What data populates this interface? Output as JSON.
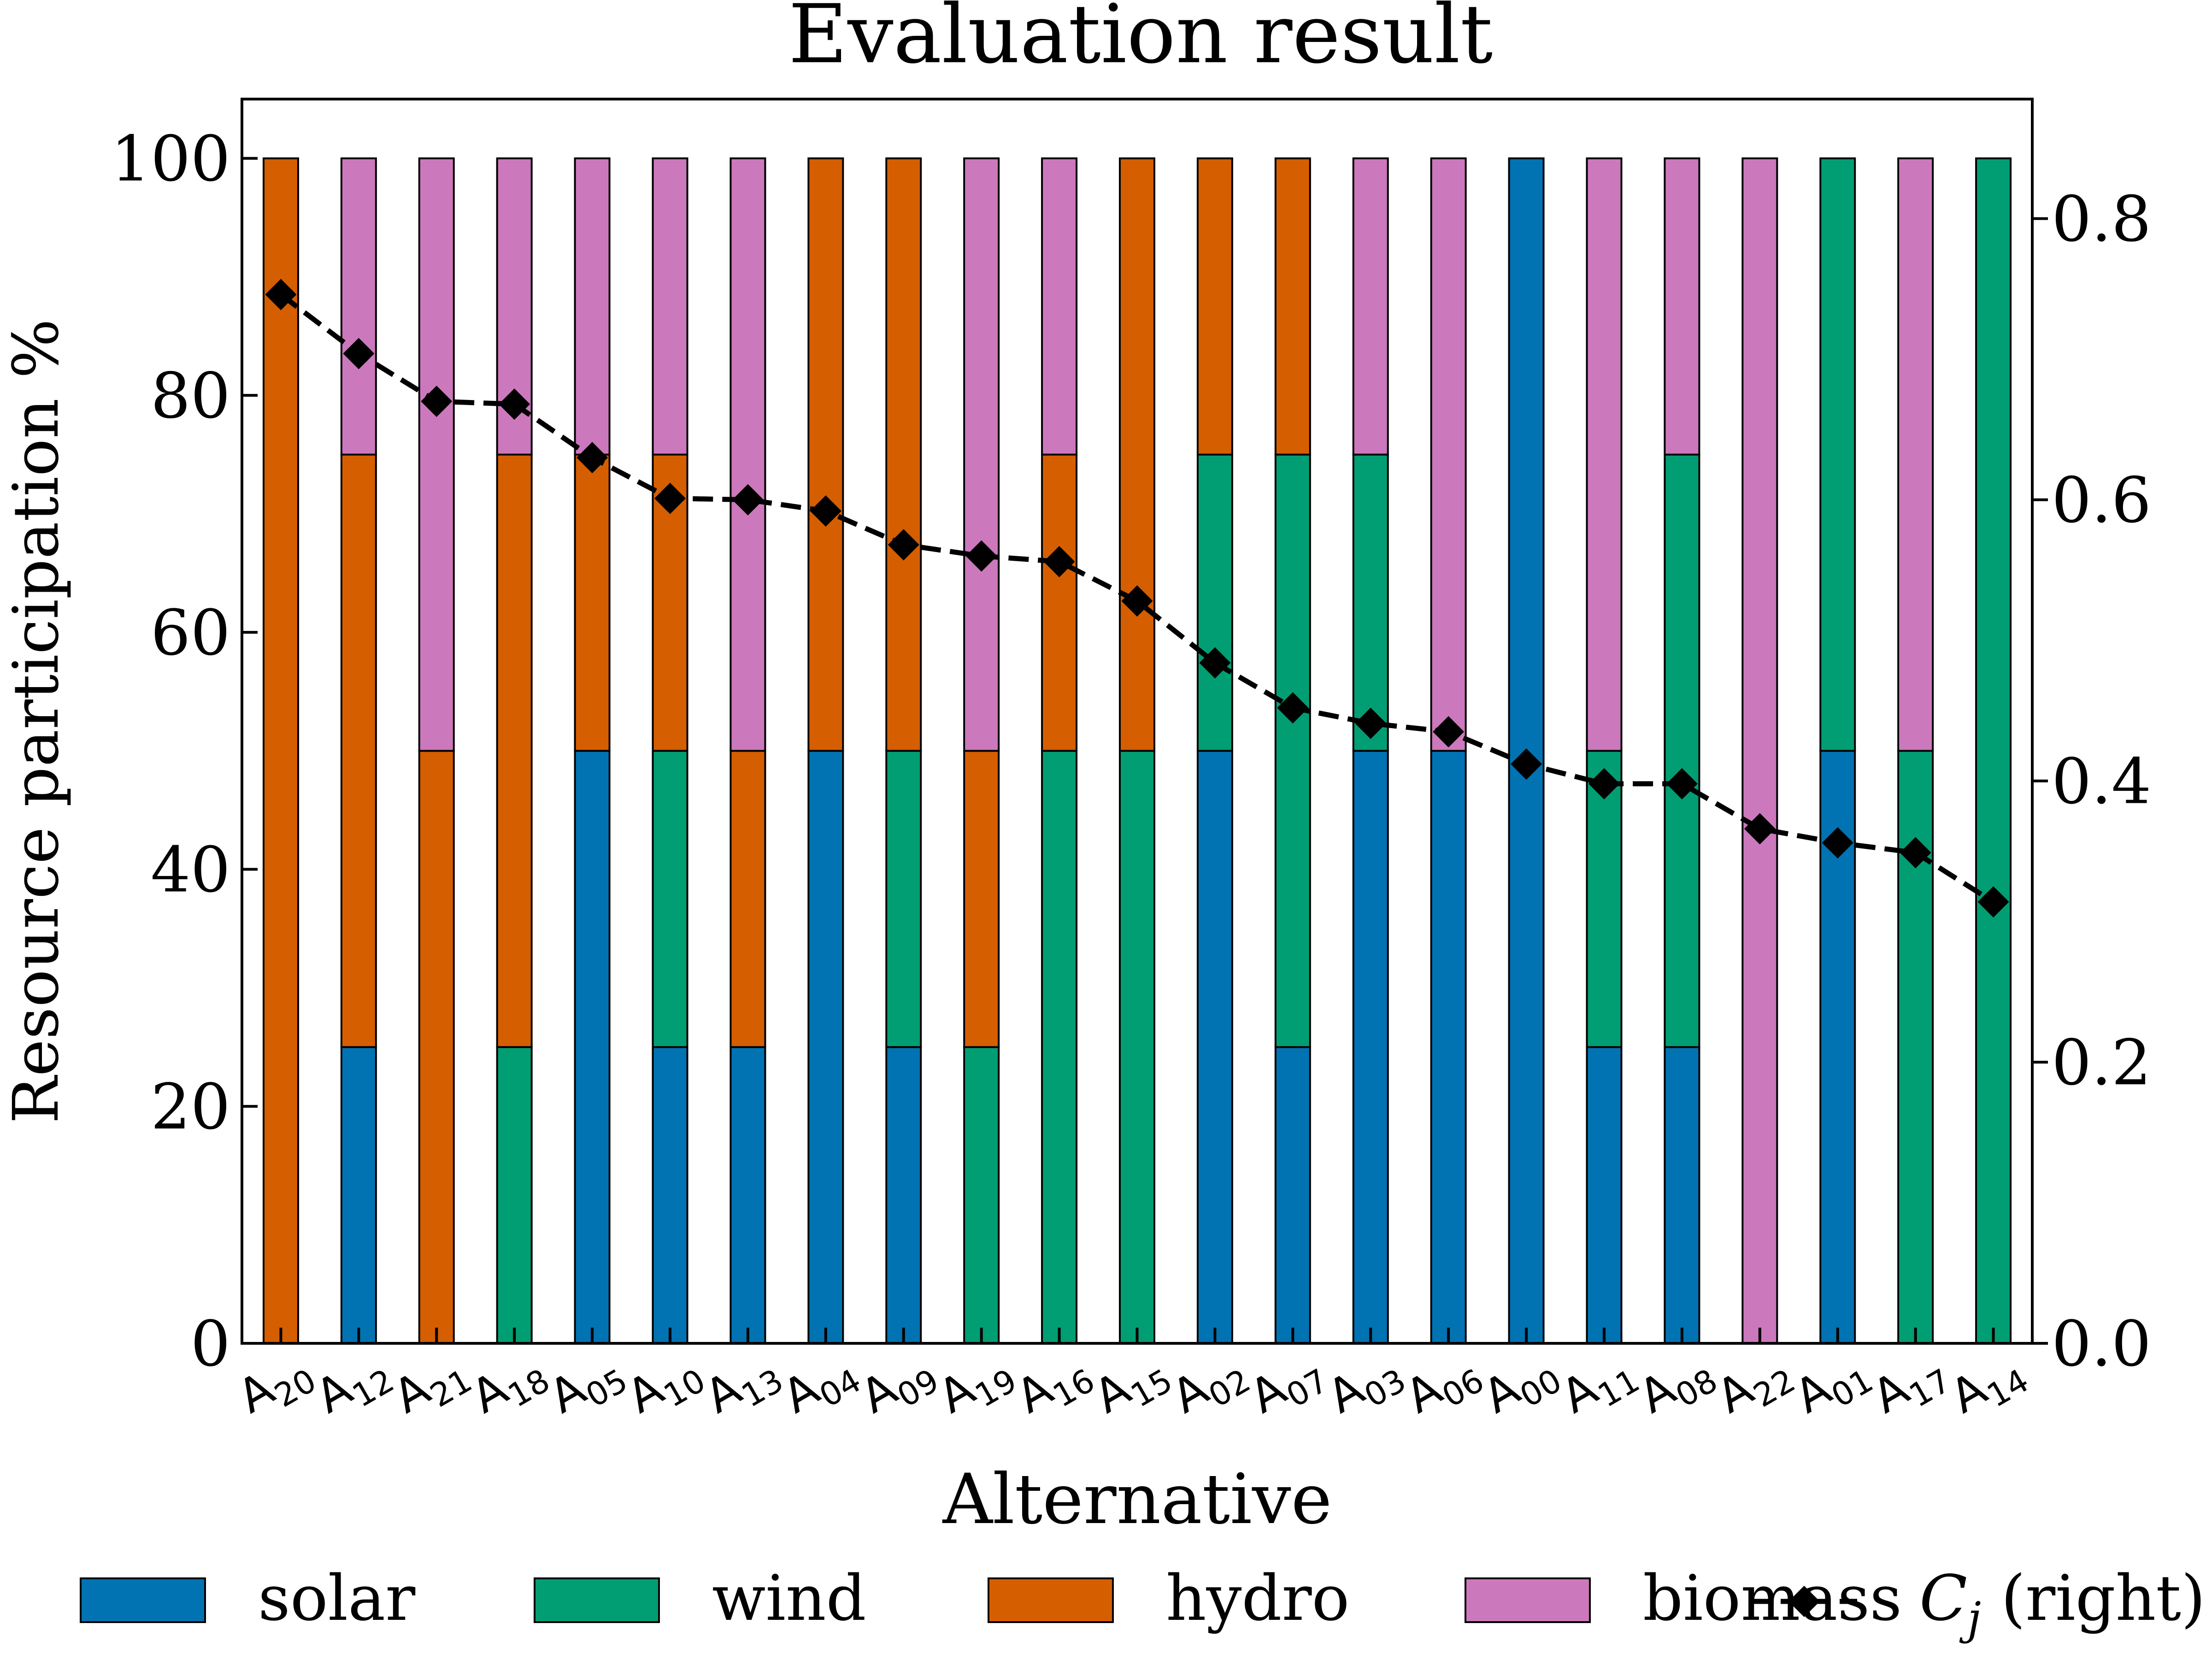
{
  "chart_data": {
    "type": "bar",
    "stacked": true,
    "title": "Evaluation result",
    "xlabel": "Alternative",
    "ylabel": "Resource participation %",
    "ylim": [
      0,
      105
    ],
    "y2lim": [
      0,
      0.885
    ],
    "yticks": [
      0,
      20,
      40,
      60,
      80,
      100
    ],
    "y2ticks": [
      0.0,
      0.2,
      0.4,
      0.6,
      0.8
    ],
    "grid": false,
    "legend": "bottom",
    "categories": [
      {
        "base": "A",
        "sub": "20"
      },
      {
        "base": "A",
        "sub": "12"
      },
      {
        "base": "A",
        "sub": "21"
      },
      {
        "base": "A",
        "sub": "18"
      },
      {
        "base": "A",
        "sub": "05"
      },
      {
        "base": "A",
        "sub": "10"
      },
      {
        "base": "A",
        "sub": "13"
      },
      {
        "base": "A",
        "sub": "04"
      },
      {
        "base": "A",
        "sub": "09"
      },
      {
        "base": "A",
        "sub": "19"
      },
      {
        "base": "A",
        "sub": "16"
      },
      {
        "base": "A",
        "sub": "15"
      },
      {
        "base": "A",
        "sub": "02"
      },
      {
        "base": "A",
        "sub": "07"
      },
      {
        "base": "A",
        "sub": "03"
      },
      {
        "base": "A",
        "sub": "06"
      },
      {
        "base": "A",
        "sub": "00"
      },
      {
        "base": "A",
        "sub": "11"
      },
      {
        "base": "A",
        "sub": "08"
      },
      {
        "base": "A",
        "sub": "22"
      },
      {
        "base": "A",
        "sub": "01"
      },
      {
        "base": "A",
        "sub": "17"
      },
      {
        "base": "A",
        "sub": "14"
      }
    ],
    "series": [
      {
        "name": "solar",
        "color": "#0173b2",
        "values": [
          0,
          25,
          0,
          0,
          50,
          25,
          25,
          50,
          25,
          0,
          0,
          0,
          50,
          25,
          50,
          50,
          100,
          25,
          25,
          0,
          50,
          0,
          0
        ]
      },
      {
        "name": "wind",
        "color": "#029e73",
        "values": [
          0,
          0,
          0,
          25,
          0,
          25,
          0,
          0,
          25,
          25,
          50,
          50,
          25,
          50,
          25,
          0,
          0,
          25,
          50,
          0,
          50,
          50,
          100
        ]
      },
      {
        "name": "hydro",
        "color": "#d55e00",
        "values": [
          100,
          50,
          50,
          50,
          25,
          25,
          25,
          50,
          50,
          25,
          25,
          50,
          25,
          25,
          0,
          0,
          0,
          0,
          0,
          0,
          0,
          0,
          0
        ]
      },
      {
        "name": "biomass",
        "color": "#cc78bc",
        "values": [
          0,
          25,
          50,
          25,
          25,
          25,
          50,
          0,
          0,
          50,
          25,
          0,
          0,
          0,
          25,
          50,
          0,
          50,
          25,
          100,
          0,
          50,
          0
        ]
      }
    ],
    "line_series": {
      "name_base": "C",
      "name_sub": "j",
      "name_suffix": " (right)",
      "axis": "right",
      "color": "#000000",
      "values": [
        0.746,
        0.704,
        0.67,
        0.668,
        0.63,
        0.601,
        0.6,
        0.592,
        0.568,
        0.56,
        0.556,
        0.528,
        0.484,
        0.452,
        0.441,
        0.435,
        0.412,
        0.398,
        0.398,
        0.366,
        0.356,
        0.349,
        0.314
      ]
    }
  }
}
